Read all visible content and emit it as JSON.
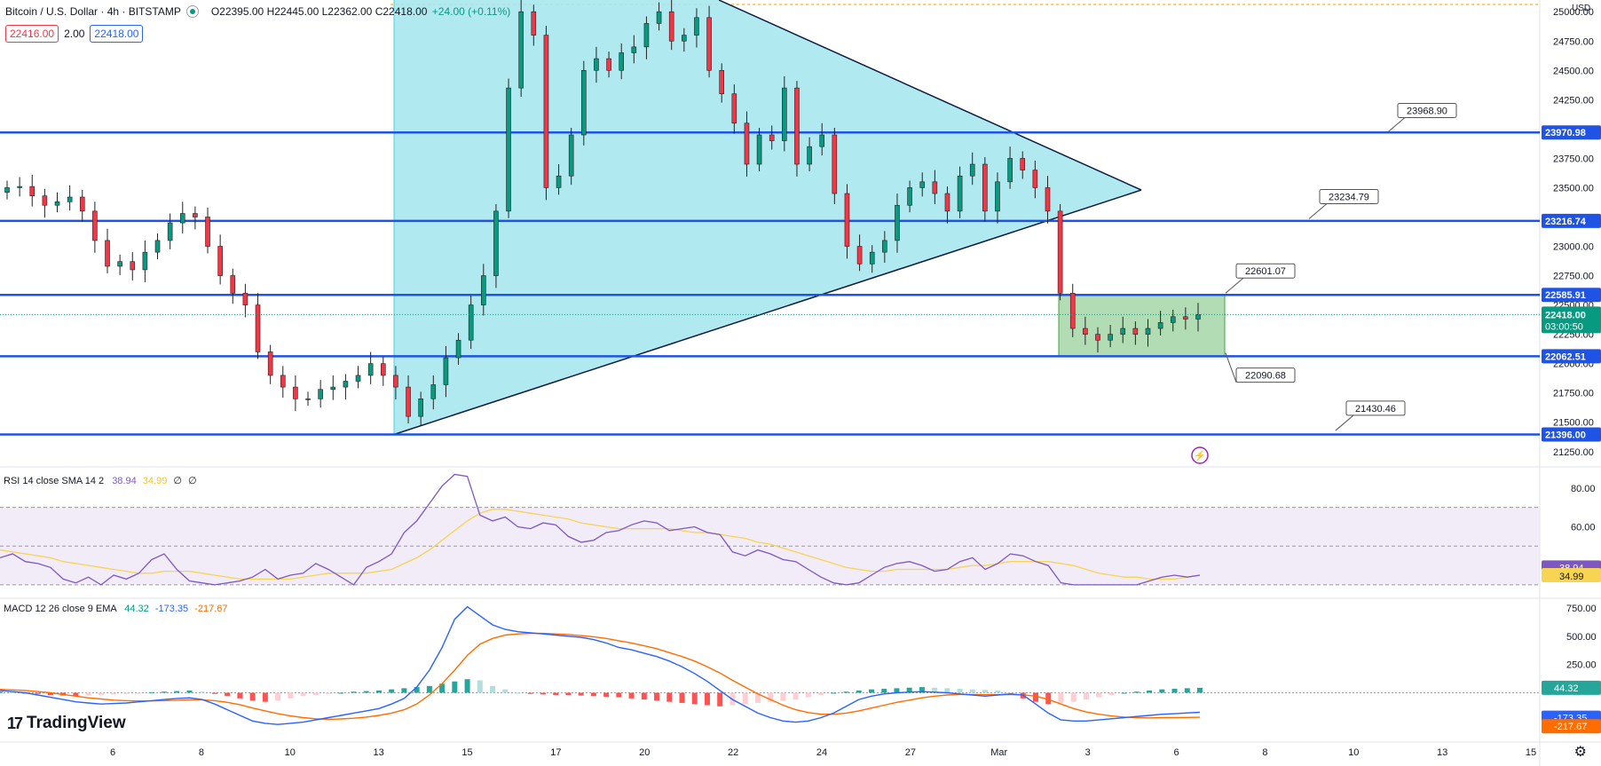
{
  "header": {
    "symbol": "Bitcoin / U.S. Dollar · 4h · BITSTAMP",
    "open": "O22395.00",
    "high": "H22445.00",
    "low": "L22362.00",
    "close": "C22418.00",
    "change": "+24.00 (+0.11%)",
    "bid": "22416.00",
    "spread": "2.00",
    "ask": "22418.00",
    "currency": "USD"
  },
  "colors": {
    "up": "#089981",
    "down": "#f23645",
    "level_line": "#1e53e5",
    "triangle_fill": "#a9e7f0",
    "range_fill": "#a5d6a7",
    "rsi_line": "#7e57c2",
    "rsi_sma": "#f7d451",
    "macd_line": "#2962ff",
    "signal_line": "#ff6d00"
  },
  "chart_data": [
    {
      "type": "candlestick",
      "title": "Bitcoin / U.S. Dollar · 4h · BITSTAMP",
      "ylim": [
        21150,
        25100
      ],
      "x_ticks": [
        "6",
        "8",
        "10",
        "13",
        "15",
        "17",
        "20",
        "22",
        "24",
        "27",
        "Mar",
        "3",
        "6",
        "8",
        "10",
        "13",
        "15"
      ],
      "y_ticks": [
        21250,
        21500,
        21750,
        22000,
        22250,
        22500,
        22750,
        23000,
        23250,
        23500,
        23750,
        24000,
        24250,
        24500,
        24750,
        25000
      ],
      "y_tick_labels": [
        "21250.00",
        "21500.00",
        "21750.00",
        "22000.00",
        "22250.00",
        "22500.00",
        "22750.00",
        "23000.00",
        "23250.00",
        "23500.00",
        "23750.00",
        "24000.00",
        "24250.00",
        "24500.00",
        "24750.00",
        "25000.00"
      ],
      "horizontal_levels": [
        {
          "value": 23970.98,
          "label": "23970.98"
        },
        {
          "value": 23216.74,
          "label": "23216.74"
        },
        {
          "value": 22585.91,
          "label": "22585.91"
        },
        {
          "value": 22062.51,
          "label": "22062.51"
        },
        {
          "value": 21396.0,
          "label": "21396.00"
        }
      ],
      "price_tag": {
        "value": 22418.0,
        "label": "22418.00",
        "countdown": "03:00:50"
      },
      "annotations": [
        {
          "label": "23968.90",
          "value": 23968.9
        },
        {
          "label": "23234.79",
          "value": 23234.79
        },
        {
          "label": "22601.07",
          "value": 22601.07
        },
        {
          "label": "22090.68",
          "value": 22090.68
        },
        {
          "label": "21430.46",
          "value": 21430.46
        }
      ],
      "close_series": [
        23500,
        23510,
        23430,
        23350,
        23380,
        23420,
        23300,
        23050,
        22830,
        22870,
        22800,
        22950,
        23050,
        23200,
        23280,
        23250,
        23000,
        22750,
        22600,
        22500,
        22100,
        21900,
        21800,
        21700,
        21700,
        21780,
        21800,
        21850,
        21900,
        22000,
        21900,
        21800,
        21550,
        21700,
        21820,
        22050,
        22200,
        22500,
        22750,
        23300,
        24350,
        25000,
        24800,
        23500,
        23600,
        23950,
        24500,
        24600,
        24500,
        24650,
        24700,
        24900,
        25000,
        24750,
        24800,
        24950,
        24500,
        24300,
        24050,
        23700,
        23950,
        23900,
        24350,
        23700,
        23850,
        23950,
        23450,
        23000,
        22850,
        22950,
        23050,
        23350,
        23500,
        23550,
        23450,
        23300,
        23600,
        23700,
        23300,
        23550,
        23750,
        23650,
        23500,
        23300,
        22600,
        22300,
        22250,
        22200,
        22250,
        22300,
        22250,
        22300,
        22350,
        22400,
        22380,
        22418
      ],
      "triangle_apex": 23480,
      "range_box": [
        22062.51,
        22585.91
      ]
    },
    {
      "type": "line",
      "title": "RSI 14 close SMA 14 2",
      "ylim": [
        24,
        90
      ],
      "y_ticks": [
        40,
        60,
        80
      ],
      "y_tick_labels": [
        "40.00",
        "60.00",
        "80.00"
      ],
      "bands": [
        30,
        50,
        70
      ],
      "series": [
        {
          "name": "RSI",
          "last": "38.94",
          "values": [
            44,
            46,
            42,
            41,
            39,
            33,
            31,
            34,
            30,
            35,
            33,
            36,
            43,
            46,
            38,
            32,
            31,
            30,
            31,
            32,
            34,
            38,
            33,
            35,
            36,
            41,
            38,
            34,
            30,
            39,
            42,
            46,
            57,
            63,
            72,
            81,
            87,
            86,
            66,
            63,
            65,
            60,
            59,
            62,
            61,
            55,
            52,
            53,
            57,
            58,
            61,
            63,
            62,
            58,
            59,
            60,
            57,
            56,
            47,
            45,
            48,
            46,
            43,
            42,
            38,
            34,
            31,
            30,
            31,
            35,
            39,
            41,
            42,
            40,
            37,
            38,
            42,
            44,
            38,
            41,
            46,
            45,
            42,
            40,
            31,
            30,
            30,
            30,
            30,
            30,
            30,
            32,
            34,
            35,
            34,
            35
          ]
        },
        {
          "name": "SMA",
          "last": "34.99",
          "values": [
            48,
            47,
            46,
            45,
            44,
            42,
            41,
            40,
            39,
            38,
            37,
            36,
            36,
            37,
            37,
            37,
            36,
            35,
            34,
            33,
            33,
            33,
            33,
            33,
            34,
            35,
            36,
            36,
            36,
            36,
            37,
            38,
            41,
            44,
            48,
            53,
            58,
            63,
            67,
            69,
            69,
            68,
            67,
            66,
            65,
            64,
            62,
            61,
            60,
            59,
            59,
            59,
            59,
            59,
            58,
            57,
            57,
            56,
            55,
            54,
            52,
            51,
            49,
            47,
            45,
            43,
            41,
            39,
            38,
            37,
            37,
            38,
            38,
            38,
            38,
            38,
            39,
            40,
            40,
            41,
            42,
            42,
            42,
            42,
            41,
            40,
            38,
            36,
            35,
            34,
            34,
            33,
            33,
            33,
            34,
            35
          ]
        }
      ],
      "legend_values": [
        "38.94",
        "34.99",
        "∅",
        "∅"
      ]
    },
    {
      "type": "bar+line",
      "title": "MACD 12 26 close 9 EMA",
      "ylim": [
        -420,
        820
      ],
      "y_ticks": [
        250,
        500,
        750
      ],
      "y_tick_labels": [
        "250.00",
        "500.00",
        "750.00"
      ],
      "series": [
        {
          "name": "Histogram",
          "last": "44.32",
          "values": [
            10,
            5,
            -5,
            -10,
            -20,
            -25,
            -30,
            -25,
            -20,
            -15,
            -10,
            -5,
            5,
            10,
            15,
            20,
            10,
            -10,
            -30,
            -50,
            -70,
            -80,
            -70,
            -50,
            -30,
            -20,
            -10,
            0,
            10,
            15,
            20,
            30,
            40,
            50,
            60,
            80,
            100,
            120,
            110,
            60,
            30,
            0,
            -10,
            -15,
            -20,
            -20,
            -25,
            -30,
            -35,
            -40,
            -50,
            -60,
            -70,
            -80,
            -90,
            -100,
            -110,
            -120,
            -110,
            -100,
            -90,
            -80,
            -70,
            -60,
            -40,
            -20,
            0,
            10,
            20,
            30,
            35,
            40,
            45,
            50,
            45,
            40,
            35,
            30,
            25,
            20,
            0,
            -50,
            -80,
            -100,
            -90,
            -80,
            -60,
            -40,
            -20,
            0,
            10,
            20,
            30,
            35,
            40,
            44
          ]
        },
        {
          "name": "MACD",
          "last": "-173.35",
          "values": [
            20,
            10,
            0,
            -20,
            -40,
            -60,
            -80,
            -90,
            -100,
            -95,
            -90,
            -80,
            -70,
            -60,
            -50,
            -45,
            -60,
            -100,
            -150,
            -200,
            -250,
            -270,
            -280,
            -270,
            -260,
            -240,
            -220,
            -200,
            -180,
            -160,
            -140,
            -100,
            -50,
            50,
            200,
            400,
            650,
            760,
            680,
            600,
            560,
            540,
            530,
            520,
            510,
            500,
            490,
            470,
            440,
            400,
            380,
            350,
            320,
            280,
            230,
            170,
            100,
            20,
            -60,
            -120,
            -180,
            -220,
            -250,
            -260,
            -250,
            -220,
            -180,
            -120,
            -60,
            -30,
            -10,
            0,
            5,
            10,
            5,
            0,
            -10,
            -20,
            -30,
            -20,
            -10,
            -20,
            -100,
            -180,
            -240,
            -250,
            -250,
            -240,
            -230,
            -220,
            -210,
            -200,
            -190,
            -185,
            -178,
            -173
          ]
        },
        {
          "name": "Signal",
          "last": "-217.67",
          "values": [
            30,
            25,
            20,
            10,
            0,
            -15,
            -30,
            -45,
            -55,
            -65,
            -70,
            -72,
            -72,
            -70,
            -66,
            -62,
            -62,
            -70,
            -85,
            -105,
            -135,
            -160,
            -185,
            -205,
            -220,
            -230,
            -235,
            -232,
            -225,
            -215,
            -200,
            -180,
            -150,
            -100,
            -20,
            80,
            200,
            330,
            430,
            480,
            510,
            520,
            525,
            525,
            520,
            515,
            505,
            495,
            480,
            460,
            440,
            415,
            390,
            355,
            320,
            280,
            230,
            175,
            110,
            50,
            -10,
            -60,
            -110,
            -150,
            -175,
            -190,
            -190,
            -180,
            -160,
            -135,
            -110,
            -85,
            -65,
            -45,
            -30,
            -20,
            -15,
            -15,
            -17,
            -17,
            -17,
            -18,
            -30,
            -60,
            -100,
            -140,
            -170,
            -190,
            -205,
            -215,
            -220,
            -222,
            -220,
            -219,
            -218,
            -217
          ]
        }
      ],
      "legend_values": [
        "44.32",
        "-173.35",
        "-217.67"
      ]
    }
  ],
  "branding": {
    "logo_text": "TradingView"
  }
}
